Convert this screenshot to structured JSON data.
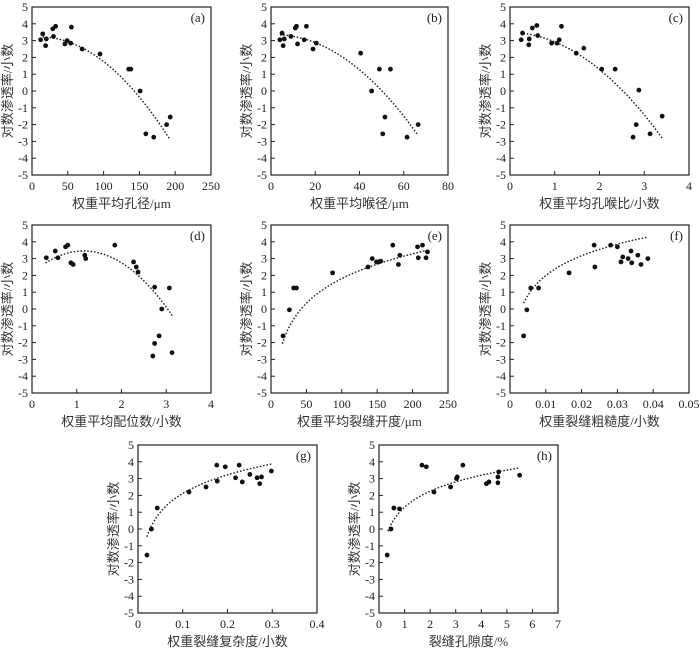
{
  "chart_data": [
    {
      "type": "scatter",
      "panel": "(a)",
      "xlabel": "权重平均孔径/μm",
      "ylabel": "对数渗透率/小数",
      "xlim": [
        0,
        250
      ],
      "ylim": [
        -5,
        5
      ],
      "xticks": [
        "0",
        "50",
        "100",
        "150",
        "200",
        "250"
      ],
      "yticks": [
        "-5",
        "-4",
        "-3",
        "-2",
        "-1",
        "0",
        "1",
        "2",
        "3",
        "4",
        "5"
      ],
      "points": [
        [
          12,
          3.05
        ],
        [
          15,
          3.4
        ],
        [
          19,
          2.7
        ],
        [
          20,
          3.1
        ],
        [
          29,
          3.7
        ],
        [
          30,
          3.25
        ],
        [
          33,
          3.85
        ],
        [
          46,
          2.8
        ],
        [
          49,
          3.0
        ],
        [
          54,
          2.85
        ],
        [
          55,
          3.8
        ],
        [
          70,
          2.5
        ],
        [
          95,
          2.2
        ],
        [
          135,
          1.3
        ],
        [
          138,
          1.3
        ],
        [
          151,
          0.0
        ],
        [
          159,
          -2.55
        ],
        [
          170,
          -2.75
        ],
        [
          188,
          -2.0
        ],
        [
          193,
          -1.55
        ]
      ],
      "fit": {
        "type": "quadratic",
        "x_range": [
          15,
          192
        ],
        "coeffs": [
          3.2,
          0.004,
          -0.000185
        ],
        "style": "dotted"
      }
    },
    {
      "type": "scatter",
      "panel": "(b)",
      "xlabel": "权重平均喉径/μm",
      "ylabel": "对数渗透率/小数",
      "xlim": [
        0,
        80
      ],
      "ylim": [
        -5,
        5
      ],
      "xticks": [
        "0",
        "20",
        "40",
        "60",
        "80"
      ],
      "yticks": [
        "-5",
        "-4",
        "-3",
        "-2",
        "-1",
        "0",
        "1",
        "2",
        "3",
        "4",
        "5"
      ],
      "points": [
        [
          4,
          3.05
        ],
        [
          5,
          3.45
        ],
        [
          5.5,
          2.7
        ],
        [
          6,
          3.1
        ],
        [
          9,
          3.25
        ],
        [
          11,
          3.75
        ],
        [
          11.5,
          3.85
        ],
        [
          12,
          2.8
        ],
        [
          15,
          3.05
        ],
        [
          16,
          3.85
        ],
        [
          19,
          2.5
        ],
        [
          20.5,
          2.85
        ],
        [
          40.5,
          2.25
        ],
        [
          45.5,
          0.0
        ],
        [
          49,
          1.3
        ],
        [
          50.5,
          -2.55
        ],
        [
          51.5,
          -1.55
        ],
        [
          54,
          1.3
        ],
        [
          61.5,
          -2.75
        ],
        [
          66.5,
          -2.0
        ]
      ],
      "fit": {
        "type": "quadratic",
        "x_range": [
          4,
          66
        ],
        "coeffs": [
          3.35,
          0.005,
          -0.00143
        ],
        "style": "dotted"
      }
    },
    {
      "type": "scatter",
      "panel": "(c)",
      "xlabel": "权重平均孔喉比/小数",
      "ylabel": "对数渗透率/小数",
      "xlim": [
        0,
        4
      ],
      "ylim": [
        -5,
        5
      ],
      "xticks": [
        "0",
        "1",
        "2",
        "3",
        "4"
      ],
      "yticks": [
        "-5",
        "-4",
        "-3",
        "-2",
        "-1",
        "0",
        "1",
        "2",
        "3",
        "4",
        "5"
      ],
      "points": [
        [
          0.25,
          3.05
        ],
        [
          0.28,
          3.45
        ],
        [
          0.42,
          2.75
        ],
        [
          0.43,
          3.1
        ],
        [
          0.5,
          3.75
        ],
        [
          0.6,
          3.9
        ],
        [
          0.62,
          3.3
        ],
        [
          0.93,
          2.85
        ],
        [
          1.05,
          2.85
        ],
        [
          1.1,
          3.05
        ],
        [
          1.15,
          3.85
        ],
        [
          1.48,
          2.25
        ],
        [
          1.65,
          2.55
        ],
        [
          2.05,
          1.3
        ],
        [
          2.35,
          1.3
        ],
        [
          2.75,
          -2.75
        ],
        [
          2.82,
          -2.0
        ],
        [
          2.88,
          0.05
        ],
        [
          3.13,
          -2.55
        ],
        [
          3.4,
          -1.5
        ]
      ],
      "fit": {
        "type": "quadratic",
        "x_range": [
          0.3,
          3.4
        ],
        "coeffs": [
          3.5,
          -0.05,
          -0.53
        ],
        "style": "dotted"
      }
    },
    {
      "type": "scatter",
      "panel": "(d)",
      "xlabel": "权重平均配位数/小数",
      "ylabel": "对数渗透率/小数",
      "xlim": [
        0,
        4
      ],
      "ylim": [
        -5,
        5
      ],
      "xticks": [
        "0",
        "1",
        "2",
        "3",
        "4"
      ],
      "yticks": [
        "-5",
        "-4",
        "-3",
        "-2",
        "-1",
        "0",
        "1",
        "2",
        "3",
        "4",
        "5"
      ],
      "points": [
        [
          0.32,
          3.05
        ],
        [
          0.52,
          3.45
        ],
        [
          0.58,
          3.05
        ],
        [
          0.75,
          3.7
        ],
        [
          0.8,
          3.8
        ],
        [
          0.87,
          2.75
        ],
        [
          0.92,
          2.65
        ],
        [
          1.18,
          3.2
        ],
        [
          1.2,
          3.0
        ],
        [
          1.85,
          3.8
        ],
        [
          2.27,
          2.8
        ],
        [
          2.33,
          2.5
        ],
        [
          2.37,
          2.2
        ],
        [
          2.7,
          -2.8
        ],
        [
          2.74,
          1.3
        ],
        [
          2.74,
          -2.05
        ],
        [
          2.84,
          -1.6
        ],
        [
          2.9,
          0.0
        ],
        [
          3.07,
          1.25
        ],
        [
          3.13,
          -2.6
        ]
      ],
      "fit": {
        "type": "quadratic",
        "x_range": [
          0.3,
          3.15
        ],
        "coeffs": [
          2.15,
          2.26,
          -0.98
        ],
        "style": "dotted"
      }
    },
    {
      "type": "scatter",
      "panel": "(e)",
      "xlabel": "权重平均裂缝开度/μm",
      "ylabel": "对数渗透率/小数",
      "xlim": [
        0,
        250
      ],
      "ylim": [
        -5,
        5
      ],
      "xticks": [
        "0",
        "50",
        "100",
        "150",
        "200",
        "250"
      ],
      "yticks": [
        "-5",
        "-4",
        "-3",
        "-2",
        "-1",
        "0",
        "1",
        "2",
        "3",
        "4",
        "5"
      ],
      "points": [
        [
          17,
          -1.6
        ],
        [
          26,
          -0.05
        ],
        [
          32,
          1.25
        ],
        [
          36,
          1.25
        ],
        [
          87,
          2.15
        ],
        [
          137,
          2.5
        ],
        [
          143,
          3.0
        ],
        [
          149,
          2.8
        ],
        [
          152,
          2.8
        ],
        [
          155,
          2.85
        ],
        [
          172,
          3.8
        ],
        [
          180,
          2.65
        ],
        [
          182,
          3.2
        ],
        [
          207,
          3.7
        ],
        [
          208,
          3.05
        ],
        [
          214,
          3.8
        ],
        [
          219,
          3.05
        ],
        [
          221,
          3.4
        ]
      ],
      "fit": {
        "type": "logarithmic",
        "x_range": [
          16,
          220
        ],
        "coeffs": [
          -7.95,
          2.12
        ],
        "style": "dotted"
      }
    },
    {
      "type": "scatter",
      "panel": "(f)",
      "xlabel": "权重裂缝粗糙度/小数",
      "ylabel": "对数渗透率/小数",
      "xlim": [
        0,
        0.05
      ],
      "ylim": [
        -5,
        5
      ],
      "xticks": [
        "0",
        "0.01",
        "0.02",
        "0.03",
        "0.04",
        "0.05"
      ],
      "yticks": [
        "-5",
        "-4",
        "-3",
        "-2",
        "-1",
        "0",
        "1",
        "2",
        "3",
        "4",
        "5"
      ],
      "points": [
        [
          0.0038,
          -1.6
        ],
        [
          0.0047,
          -0.05
        ],
        [
          0.0058,
          1.25
        ],
        [
          0.008,
          1.25
        ],
        [
          0.0165,
          2.15
        ],
        [
          0.0235,
          3.8
        ],
        [
          0.0237,
          2.5
        ],
        [
          0.0281,
          3.8
        ],
        [
          0.03,
          3.7
        ],
        [
          0.031,
          2.8
        ],
        [
          0.0315,
          3.1
        ],
        [
          0.033,
          3.0
        ],
        [
          0.0338,
          3.45
        ],
        [
          0.034,
          2.75
        ],
        [
          0.0357,
          3.2
        ],
        [
          0.0366,
          2.65
        ],
        [
          0.0385,
          3.0
        ]
      ],
      "fit": {
        "type": "logarithmic",
        "x_range": [
          0.0038,
          0.0385
        ],
        "coeffs": [
          9.82,
          1.7
        ],
        "style": "dotted"
      }
    },
    {
      "type": "scatter",
      "panel": "(g)",
      "xlabel": "权重裂缝复杂度/小数",
      "ylabel": "对数渗透率/小数",
      "xlim": [
        0,
        0.4
      ],
      "ylim": [
        -5,
        5
      ],
      "xticks": [
        "0",
        "0.1",
        "0.2",
        "0.3",
        "0.4"
      ],
      "yticks": [
        "-5",
        "-4",
        "-3",
        "-2",
        "-1",
        "0",
        "1",
        "2",
        "3",
        "4",
        "5"
      ],
      "points": [
        [
          0.02,
          -1.55
        ],
        [
          0.03,
          0.0
        ],
        [
          0.043,
          1.25
        ],
        [
          0.114,
          2.2
        ],
        [
          0.152,
          2.5
        ],
        [
          0.176,
          3.8
        ],
        [
          0.177,
          2.85
        ],
        [
          0.195,
          3.7
        ],
        [
          0.218,
          3.05
        ],
        [
          0.226,
          3.8
        ],
        [
          0.233,
          2.8
        ],
        [
          0.25,
          3.25
        ],
        [
          0.266,
          3.05
        ],
        [
          0.272,
          2.7
        ],
        [
          0.276,
          3.1
        ],
        [
          0.298,
          3.45
        ]
      ],
      "fit": {
        "type": "logarithmic",
        "x_range": [
          0.02,
          0.3
        ],
        "coeffs": [
          5.8,
          1.6
        ],
        "style": "dotted"
      }
    },
    {
      "type": "scatter",
      "panel": "(h)",
      "xlabel": "裂缝孔隙度/%",
      "ylabel": "对数渗透率/小数",
      "xlim": [
        0,
        7
      ],
      "ylim": [
        -5,
        5
      ],
      "xticks": [
        "0",
        "1",
        "2",
        "3",
        "4",
        "5",
        "6",
        "7"
      ],
      "yticks": [
        "-5",
        "-4",
        "-3",
        "-2",
        "-1",
        "0",
        "1",
        "2",
        "3",
        "4",
        "5"
      ],
      "points": [
        [
          0.32,
          -1.55
        ],
        [
          0.47,
          0.0
        ],
        [
          0.58,
          1.25
        ],
        [
          0.8,
          1.2
        ],
        [
          1.68,
          3.8
        ],
        [
          1.85,
          3.7
        ],
        [
          2.15,
          2.2
        ],
        [
          2.8,
          2.5
        ],
        [
          3.03,
          3.0
        ],
        [
          3.06,
          3.1
        ],
        [
          3.28,
          3.8
        ],
        [
          4.2,
          2.7
        ],
        [
          4.3,
          2.8
        ],
        [
          4.65,
          3.1
        ],
        [
          4.65,
          2.75
        ],
        [
          4.68,
          3.4
        ],
        [
          5.5,
          3.2
        ]
      ],
      "fit": {
        "type": "logarithmic",
        "x_range": [
          0.35,
          5.45
        ],
        "coeffs": [
          1.3,
          1.37
        ],
        "style": "dotted"
      }
    }
  ]
}
